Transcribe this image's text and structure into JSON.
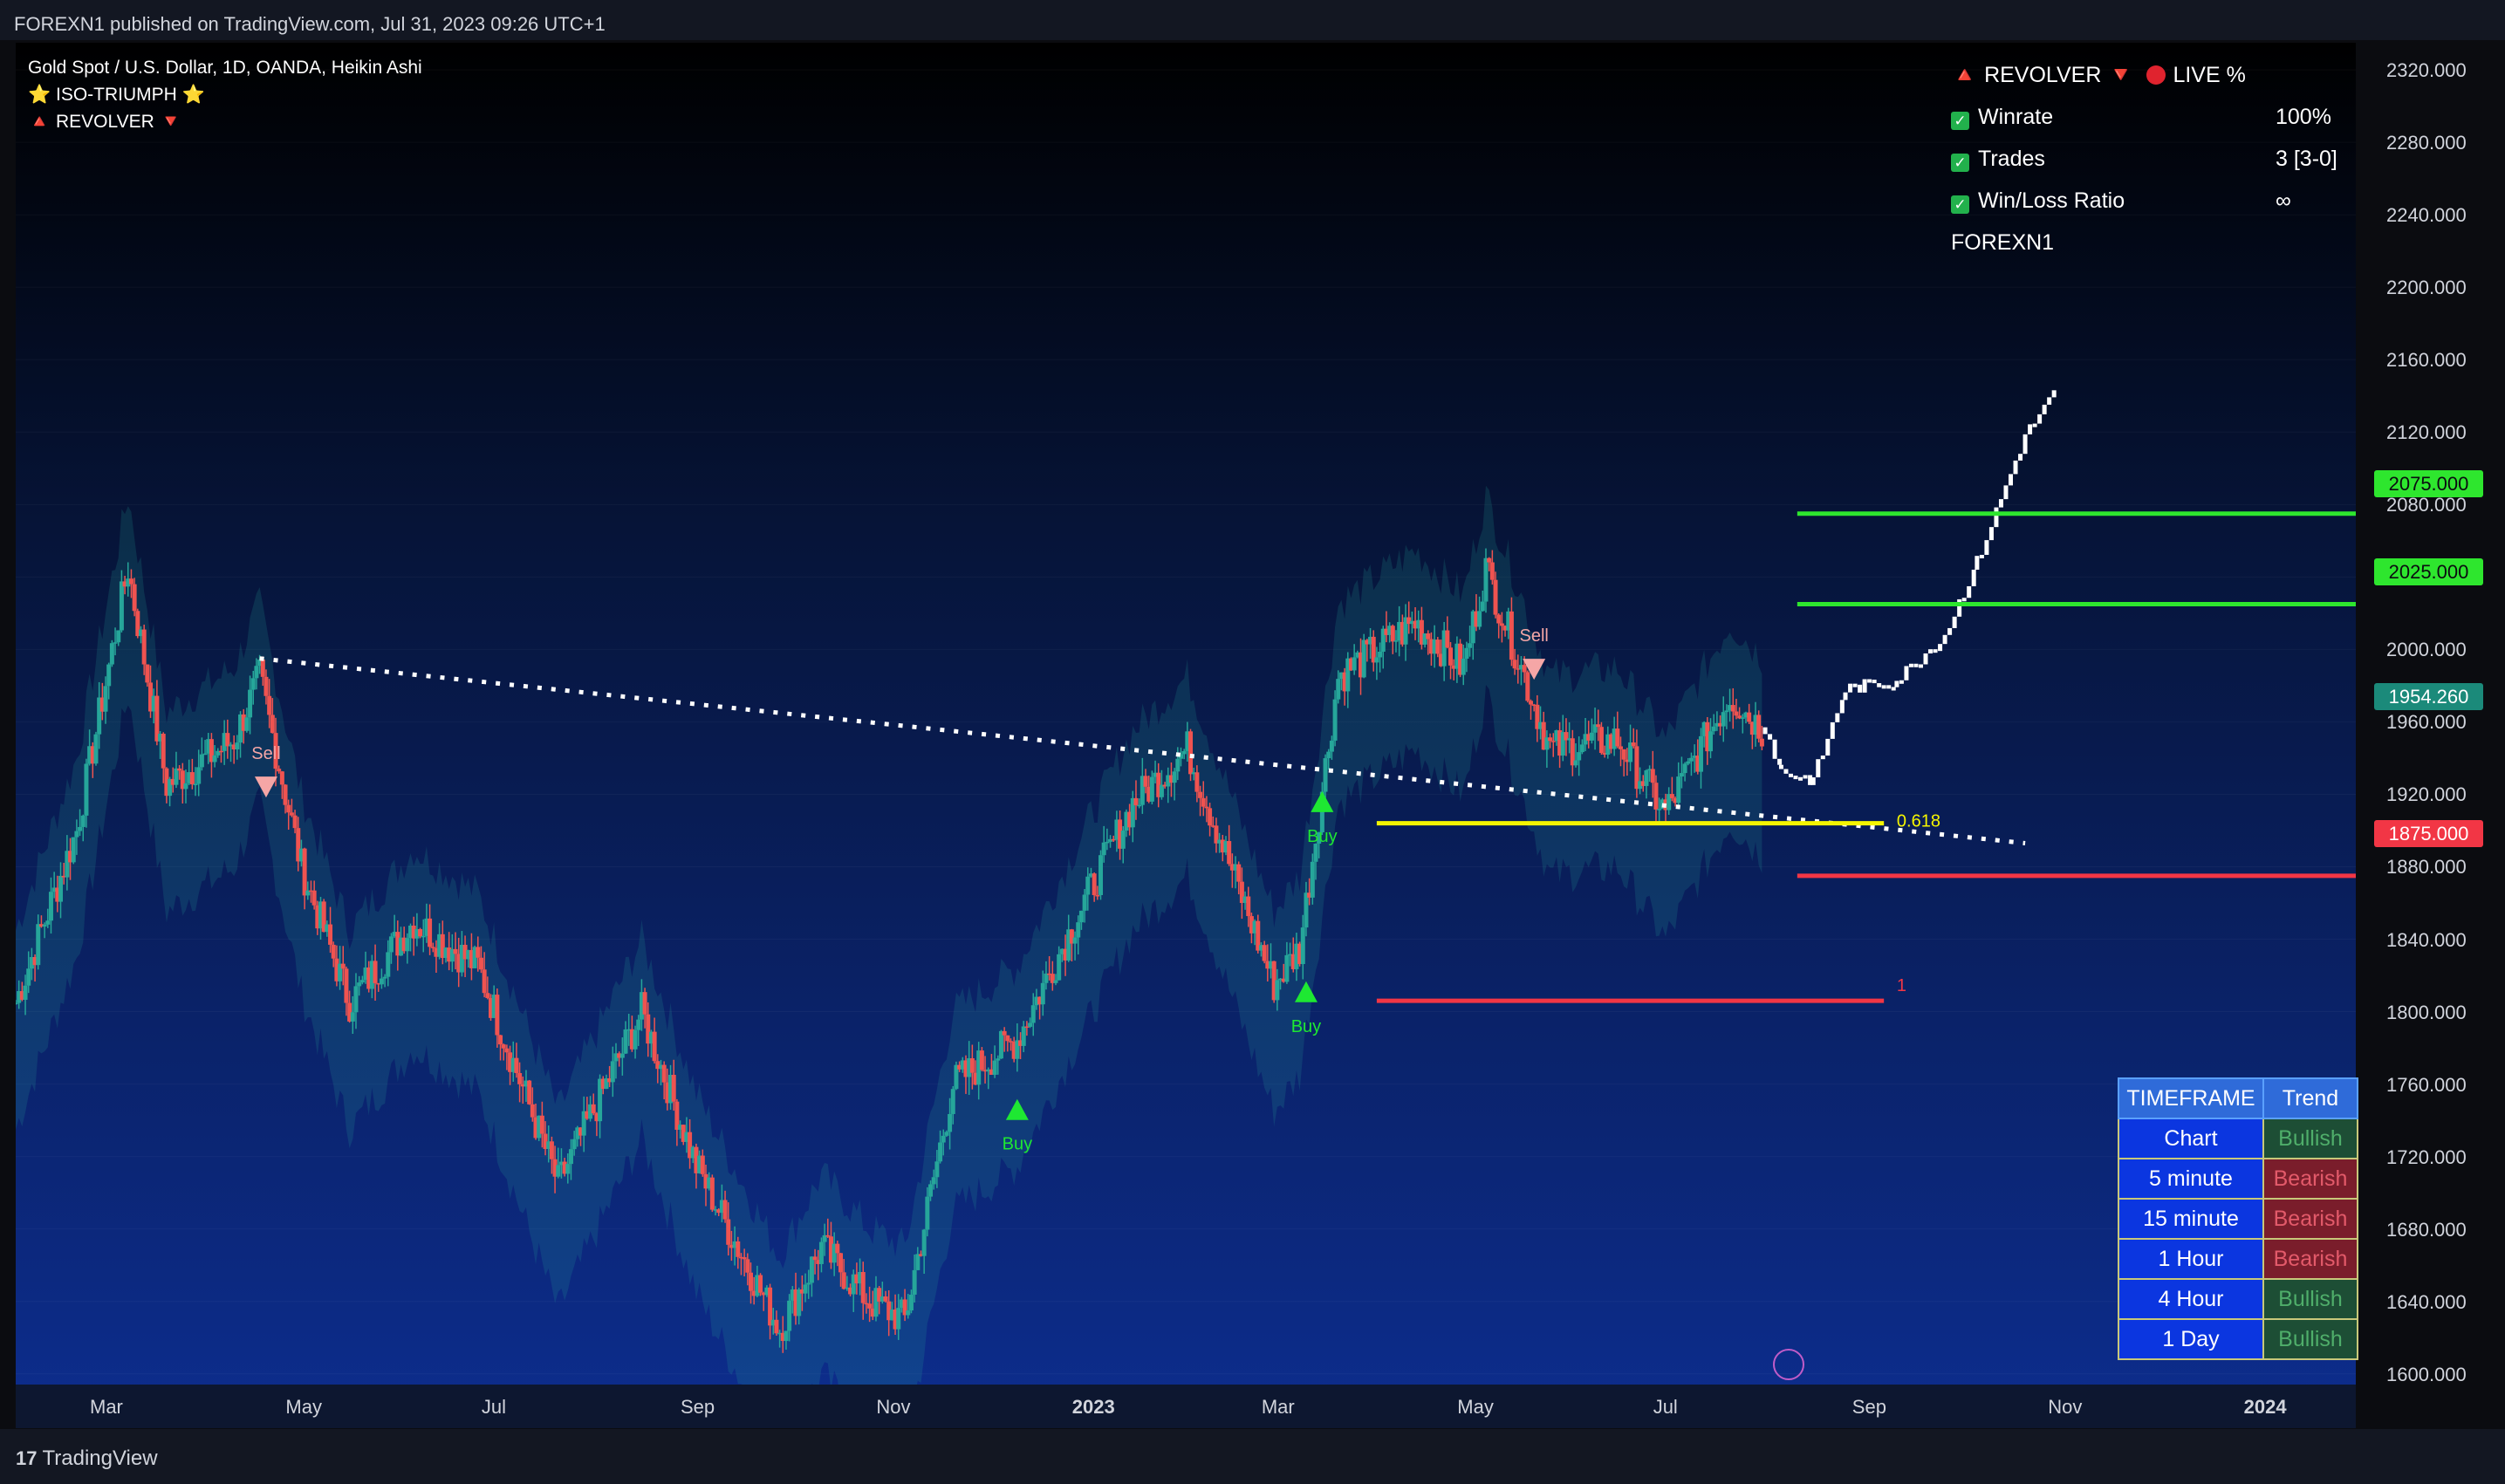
{
  "header": {
    "title": "FOREXN1 published on TradingView.com, Jul 31, 2023 09:26 UTC+1"
  },
  "footer": {
    "brand": "TradingView",
    "mark": "17"
  },
  "legend": {
    "symbol": "Gold Spot / U.S. Dollar, 1D, OANDA, Heikin Ashi",
    "indicator1": "⭐ ISO-TRIUMPH ⭐",
    "indicator2": "🔺 REVOLVER 🔻"
  },
  "stats_panel": {
    "title_left": "🔺 REVOLVER 🔻",
    "title_right": "LIVE %",
    "rows": [
      {
        "label": "Winrate",
        "value": "100%"
      },
      {
        "label": "Trades",
        "value": "3 [3-0]"
      },
      {
        "label": "Win/Loss Ratio",
        "value": "∞"
      }
    ],
    "author": "FOREXN1"
  },
  "trend_table": {
    "header": [
      "TIMEFRAME",
      "Trend"
    ],
    "rows": [
      {
        "timeframe": "Chart",
        "trend": "Bullish"
      },
      {
        "timeframe": "5 minute",
        "trend": "Bearish"
      },
      {
        "timeframe": "15 minute",
        "trend": "Bearish"
      },
      {
        "timeframe": "1 Hour",
        "trend": "Bearish"
      },
      {
        "timeframe": "4 Hour",
        "trend": "Bullish"
      },
      {
        "timeframe": "1 Day",
        "trend": "Bullish"
      }
    ]
  },
  "price_tags": {
    "tp2": "2075.000",
    "tp1": "2025.000",
    "current": "1954.260",
    "sl": "1875.000"
  },
  "colors": {
    "bull_candle": "#26a69a",
    "bear_candle": "#ef5350",
    "projection_candle": "#ffffff",
    "tp_line": "#2ee62e",
    "sl_line": "#f23645",
    "fib_line": "#f5f500",
    "trend_line": "#ffffff",
    "current_tag": "#1b8a7a"
  },
  "chart_data": {
    "type": "candlestick",
    "y_axis_ticks": [
      "2320.000",
      "2280.000",
      "2240.000",
      "2200.000",
      "2160.000",
      "2120.000",
      "2080.000",
      "2040.000",
      "2000.000",
      "1960.000",
      "1920.000",
      "1880.000",
      "1840.000",
      "1800.000",
      "1760.000",
      "1720.000",
      "1680.000",
      "1640.000",
      "1600.000"
    ],
    "x_axis_ticks": [
      "Mar",
      "May",
      "Jul",
      "Sep",
      "Nov",
      "2023",
      "Mar",
      "May",
      "Jul",
      "Sep",
      "Nov",
      "2024"
    ],
    "ylim": [
      1570,
      2335
    ],
    "x_range": [
      "2022-02-01",
      "2024-01-31"
    ],
    "ohlc_close_path": [
      {
        "date": "2022-02-01",
        "close": 1805
      },
      {
        "date": "2022-02-20",
        "close": 1900
      },
      {
        "date": "2022-03-08",
        "close": 2045
      },
      {
        "date": "2022-03-20",
        "close": 1925
      },
      {
        "date": "2022-04-10",
        "close": 1950
      },
      {
        "date": "2022-04-18",
        "close": 1985
      },
      {
        "date": "2022-05-01",
        "close": 1880
      },
      {
        "date": "2022-05-16",
        "close": 1805
      },
      {
        "date": "2022-06-05",
        "close": 1850
      },
      {
        "date": "2022-06-25",
        "close": 1825
      },
      {
        "date": "2022-07-20",
        "close": 1705
      },
      {
        "date": "2022-08-15",
        "close": 1800
      },
      {
        "date": "2022-09-01",
        "close": 1715
      },
      {
        "date": "2022-09-27",
        "close": 1625
      },
      {
        "date": "2022-10-10",
        "close": 1670
      },
      {
        "date": "2022-10-25",
        "close": 1640
      },
      {
        "date": "2022-11-05",
        "close": 1630
      },
      {
        "date": "2022-11-20",
        "close": 1760
      },
      {
        "date": "2022-12-10",
        "close": 1785
      },
      {
        "date": "2023-01-15",
        "close": 1915
      },
      {
        "date": "2023-02-01",
        "close": 1945
      },
      {
        "date": "2023-02-28",
        "close": 1815
      },
      {
        "date": "2023-03-08",
        "close": 1835
      },
      {
        "date": "2023-03-20",
        "close": 1985
      },
      {
        "date": "2023-04-13",
        "close": 2015
      },
      {
        "date": "2023-04-28",
        "close": 1990
      },
      {
        "date": "2023-05-05",
        "close": 2045
      },
      {
        "date": "2023-05-25",
        "close": 1945
      },
      {
        "date": "2023-06-15",
        "close": 1950
      },
      {
        "date": "2023-06-30",
        "close": 1910
      },
      {
        "date": "2023-07-20",
        "close": 1975
      },
      {
        "date": "2023-07-31",
        "close": 1954
      }
    ],
    "projection": [
      {
        "date": "2023-08-05",
        "close": 1930
      },
      {
        "date": "2023-08-15",
        "close": 1925
      },
      {
        "date": "2023-08-25",
        "close": 1975
      },
      {
        "date": "2023-09-10",
        "close": 1980
      },
      {
        "date": "2023-09-25",
        "close": 2005
      },
      {
        "date": "2023-10-05",
        "close": 2045
      },
      {
        "date": "2023-10-20",
        "close": 2115
      },
      {
        "date": "2023-10-30",
        "close": 2140
      }
    ],
    "levels": [
      {
        "name": "TP2",
        "value": 2075.0
      },
      {
        "name": "TP1",
        "value": 2025.0
      },
      {
        "name": "SL",
        "value": 1875.0
      },
      {
        "name": "0.618",
        "value": 1904
      },
      {
        "name": "1",
        "value": 1806
      }
    ],
    "signals": [
      {
        "type": "Sell",
        "date": "2022-04-20",
        "price": 1925
      },
      {
        "type": "Buy",
        "date": "2022-12-10",
        "price": 1745
      },
      {
        "type": "Buy",
        "date": "2023-03-10",
        "price": 1810
      },
      {
        "type": "Buy",
        "date": "2023-03-15",
        "price": 1915
      },
      {
        "type": "Sell",
        "date": "2023-05-20",
        "price": 1990
      }
    ],
    "trend_line": [
      {
        "date": "2022-04-18",
        "price": 1995
      },
      {
        "date": "2023-10-20",
        "price": 1893
      }
    ],
    "fib_labels": [
      "0.618",
      "1"
    ],
    "signal_labels": {
      "buy": "Buy",
      "sell": "Sell"
    }
  }
}
